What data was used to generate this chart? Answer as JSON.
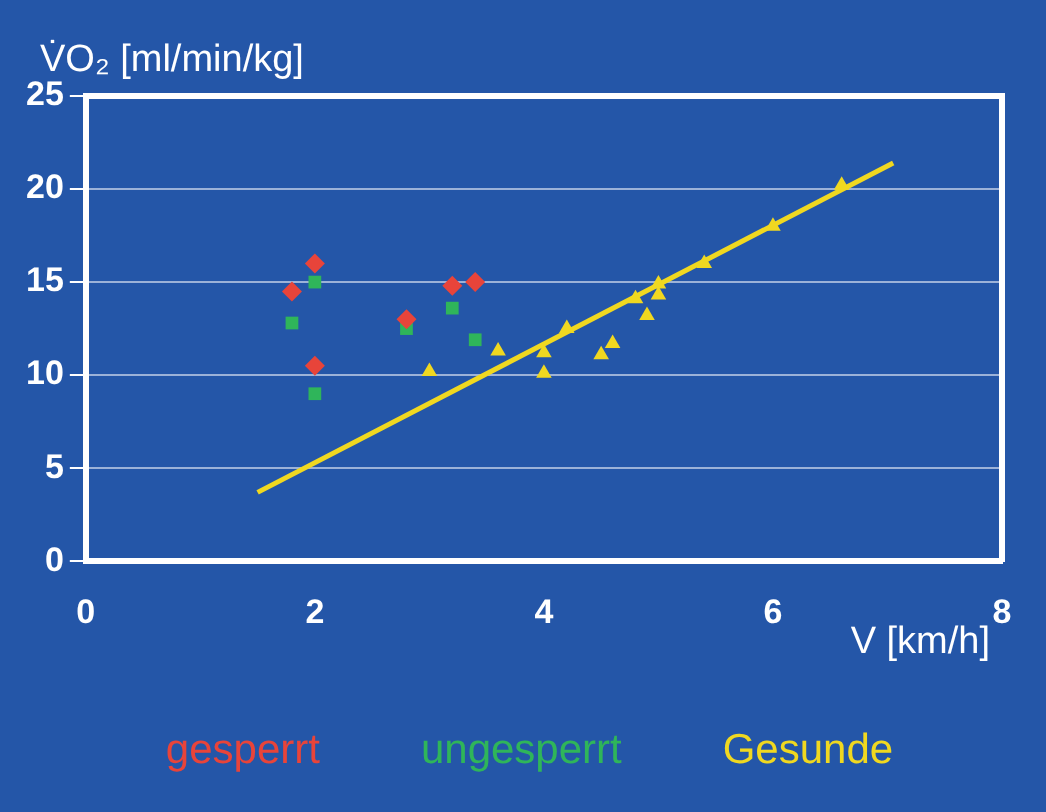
{
  "chart_data": {
    "type": "scatter",
    "xlabel": "V [km/h]",
    "ylabel": "V̇O₂ [ml/min/kg]",
    "xlim": [
      0,
      8
    ],
    "xticks": [
      0,
      2,
      4,
      6,
      8
    ],
    "ylim": [
      0,
      25
    ],
    "yticks": [
      0,
      5,
      10,
      15,
      20,
      25
    ],
    "grid": "y",
    "legend": "bottom",
    "series": [
      {
        "name": "gesperrt",
        "color": "#e8443a",
        "marker": "diamond",
        "x": [
          1.8,
          2.0,
          2.0,
          2.8,
          3.2,
          3.4
        ],
        "values": [
          14.5,
          16,
          10.5,
          13,
          14.8,
          15
        ]
      },
      {
        "name": "ungesperrt",
        "color": "#2fb55a",
        "marker": "square",
        "x": [
          1.8,
          2.0,
          2.0,
          2.8,
          3.2,
          3.4
        ],
        "values": [
          12.8,
          15,
          9,
          12.5,
          13.6,
          11.9
        ]
      },
      {
        "name": "Gesunde",
        "color": "#f0d820",
        "marker": "triangle",
        "x": [
          3.0,
          3.6,
          4.0,
          4.0,
          4.2,
          4.5,
          4.6,
          4.8,
          4.9,
          5.0,
          5.0,
          5.4,
          6.0,
          6.6
        ],
        "values": [
          10.2,
          11.3,
          11.2,
          10.1,
          12.5,
          11.1,
          11.7,
          14.1,
          13.2,
          14.9,
          14.3,
          16,
          18,
          20.2
        ]
      },
      {
        "type": "line",
        "color": "#f0d820",
        "marker": "none",
        "x": [
          1.5,
          7.05
        ],
        "values": [
          3.7,
          21.4
        ]
      }
    ]
  }
}
